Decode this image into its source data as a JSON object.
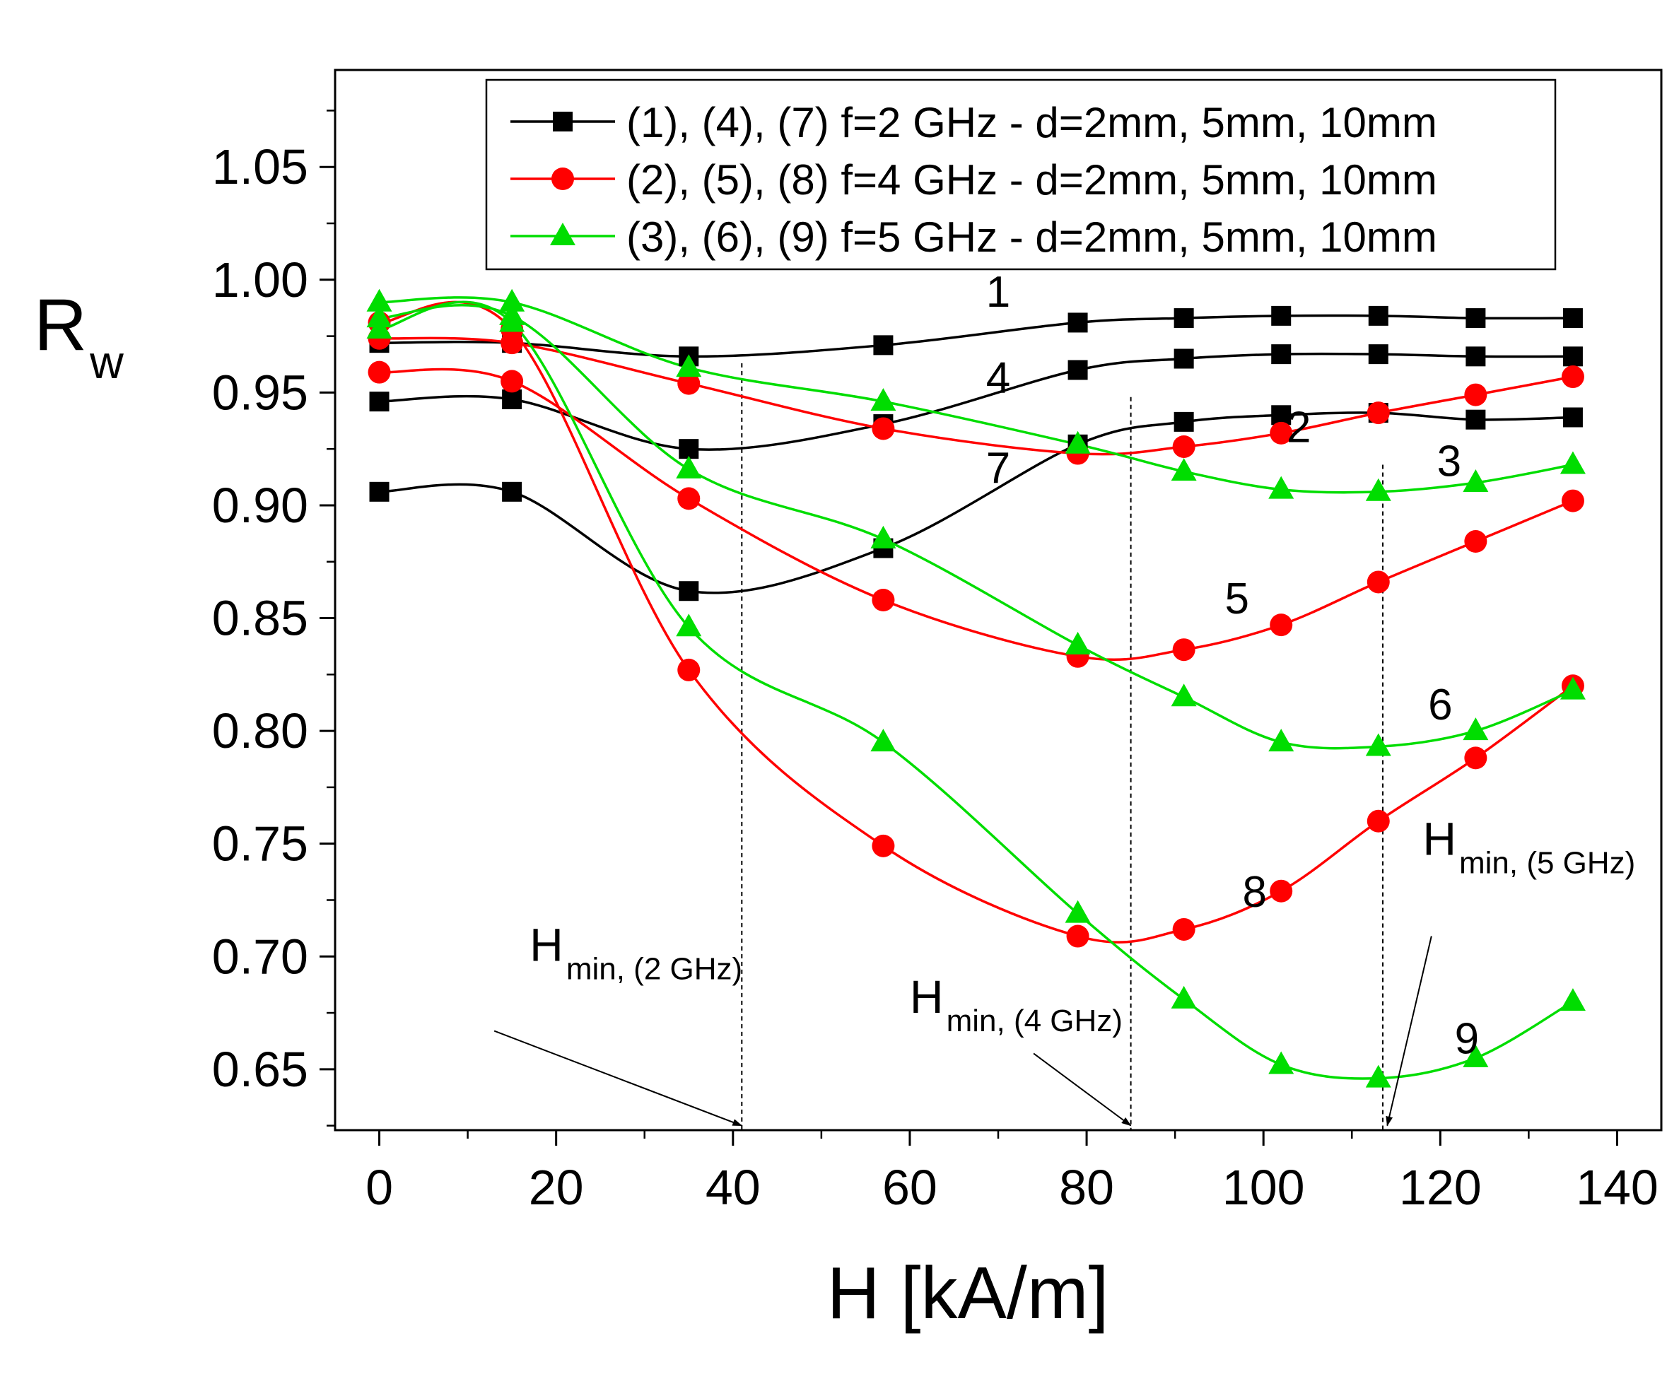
{
  "chart_data": {
    "type": "line",
    "xlabel": "H [kA/m]",
    "ylabel": {
      "main": "R",
      "sub": "w"
    },
    "xlim": [
      -5,
      145
    ],
    "ylim": [
      0.623,
      1.093
    ],
    "x_ticks": [
      0,
      20,
      40,
      60,
      80,
      100,
      120,
      140
    ],
    "x_tick_labels": [
      "0",
      "20",
      "40",
      "60",
      "80",
      "100",
      "120",
      "140"
    ],
    "y_ticks": [
      0.65,
      0.7,
      0.75,
      0.8,
      0.85,
      0.9,
      0.95,
      1.0,
      1.05
    ],
    "y_tick_labels": [
      "0.65",
      "0.70",
      "0.75",
      "0.80",
      "0.85",
      "0.90",
      "0.95",
      "1.00",
      "1.05"
    ],
    "grid": false,
    "legend_position": "top-right",
    "legend": [
      {
        "label": "(1), (4), (7) f=2 GHz - d=2mm, 5mm, 10mm",
        "color": "#000000",
        "marker": "square"
      },
      {
        "label": "(2), (5), (8) f=4 GHz - d=2mm, 5mm, 10mm",
        "color": "#ff0000",
        "marker": "circle"
      },
      {
        "label": "(3), (6), (9) f=5 GHz - d=2mm, 5mm, 10mm",
        "color": "#00dd00",
        "marker": "triangle"
      }
    ],
    "x": [
      0,
      15,
      35,
      57,
      79,
      91,
      102,
      113,
      124,
      135
    ],
    "series": [
      {
        "label": "1",
        "group": 0,
        "values": [
          0.972,
          0.972,
          0.966,
          0.971,
          0.981,
          0.983,
          0.984,
          0.984,
          0.983,
          0.983
        ]
      },
      {
        "label": "4",
        "group": 0,
        "values": [
          0.946,
          0.947,
          0.925,
          0.936,
          0.96,
          0.965,
          0.967,
          0.967,
          0.966,
          0.966
        ]
      },
      {
        "label": "7",
        "group": 0,
        "values": [
          0.906,
          0.906,
          0.862,
          0.881,
          0.927,
          0.937,
          0.94,
          0.941,
          0.938,
          0.939
        ]
      },
      {
        "label": "2",
        "group": 1,
        "values": [
          0.974,
          0.972,
          0.954,
          0.934,
          0.923,
          0.926,
          0.932,
          0.941,
          0.949,
          0.957
        ]
      },
      {
        "label": "5",
        "group": 1,
        "values": [
          0.959,
          0.955,
          0.903,
          0.858,
          0.833,
          0.836,
          0.847,
          0.866,
          0.884,
          0.902
        ]
      },
      {
        "label": "8",
        "group": 1,
        "values": [
          0.981,
          0.978,
          0.827,
          0.749,
          0.709,
          0.712,
          0.729,
          0.76,
          0.788,
          0.82
        ]
      },
      {
        "label": "3",
        "group": 2,
        "values": [
          0.99,
          0.99,
          0.961,
          0.946,
          0.927,
          0.915,
          0.907,
          0.906,
          0.91,
          0.918
        ]
      },
      {
        "label": "6",
        "group": 2,
        "values": [
          0.983,
          0.984,
          0.916,
          0.885,
          0.838,
          0.815,
          0.795,
          0.793,
          0.8,
          0.818
        ]
      },
      {
        "label": "9",
        "group": 2,
        "values": [
          0.978,
          0.981,
          0.846,
          0.795,
          0.719,
          0.681,
          0.652,
          0.646,
          0.655,
          0.68
        ]
      }
    ],
    "curve_labels": [
      {
        "text": "1",
        "x": 70,
        "y": 0.988
      },
      {
        "text": "4",
        "x": 70,
        "y": 0.95
      },
      {
        "text": "7",
        "x": 70,
        "y": 0.91
      },
      {
        "text": "2",
        "x": 104,
        "y": 0.928
      },
      {
        "text": "3",
        "x": 121,
        "y": 0.913
      },
      {
        "text": "5",
        "x": 97,
        "y": 0.852
      },
      {
        "text": "6",
        "x": 120,
        "y": 0.805
      },
      {
        "text": "8",
        "x": 99,
        "y": 0.722
      },
      {
        "text": "9",
        "x": 123,
        "y": 0.657
      }
    ],
    "vlines": [
      41,
      85,
      113.5
    ],
    "annotations": [
      {
        "main": "H",
        "sub": "min, (2 GHz)",
        "x": 17,
        "y": 0.698,
        "arrow_from": [
          13,
          0.667
        ],
        "arrow_to": [
          41,
          0.625
        ]
      },
      {
        "main": "H",
        "sub": "min, (4 GHz)",
        "x": 60,
        "y": 0.675,
        "arrow_from": [
          74,
          0.657
        ],
        "arrow_to": [
          85,
          0.625
        ]
      },
      {
        "main": "H",
        "sub": "min, (5 GHz)",
        "x": 118,
        "y": 0.745,
        "arrow_from": [
          119,
          0.709
        ],
        "arrow_to": [
          114,
          0.625
        ]
      }
    ]
  }
}
